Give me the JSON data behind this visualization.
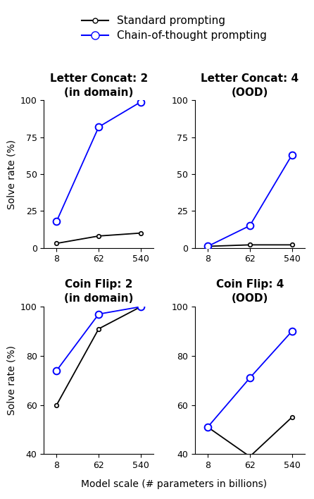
{
  "x_ticks": [
    8,
    62,
    540
  ],
  "x_label": "Model scale (# parameters in billions)",
  "subplots": [
    {
      "title_line1": "Letter Concat: 2",
      "title_line2": "(in domain)",
      "ylabel": "Solve rate (%)",
      "ylim": [
        0,
        100
      ],
      "yticks": [
        0,
        25,
        50,
        75,
        100
      ],
      "standard": [
        3,
        8,
        10
      ],
      "cot": [
        18,
        82,
        99
      ]
    },
    {
      "title_line1": "Letter Concat: 4",
      "title_line2": "(OOD)",
      "ylabel": "",
      "ylim": [
        0,
        100
      ],
      "yticks": [
        0,
        25,
        50,
        75,
        100
      ],
      "standard": [
        1,
        2,
        2
      ],
      "cot": [
        1,
        15,
        63
      ]
    },
    {
      "title_line1": "Coin Flip: 2",
      "title_line2": "(in domain)",
      "ylabel": "Solve rate (%)",
      "ylim": [
        40,
        100
      ],
      "yticks": [
        40,
        60,
        80,
        100
      ],
      "standard": [
        60,
        91,
        100
      ],
      "cot": [
        74,
        97,
        100
      ]
    },
    {
      "title_line1": "Coin Flip: 4",
      "title_line2": "(OOD)",
      "ylabel": "",
      "ylim": [
        40,
        100
      ],
      "yticks": [
        40,
        60,
        80,
        100
      ],
      "standard": [
        51,
        39,
        55
      ],
      "cot": [
        51,
        71,
        90
      ]
    }
  ],
  "standard_color": "#000000",
  "cot_color": "#0000ff",
  "legend_labels": [
    "Standard prompting",
    "Chain-of-thought prompting"
  ],
  "title_fontsize": 11,
  "label_fontsize": 10,
  "tick_fontsize": 9,
  "legend_fontsize": 11
}
